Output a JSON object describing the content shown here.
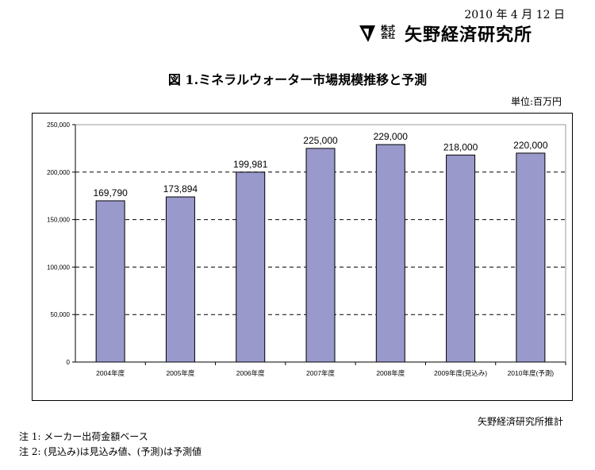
{
  "header": {
    "date": "2010 年 4 月 12 日",
    "company_small": "株式会社",
    "company_name": "矢野経済研究所"
  },
  "chart_data": {
    "type": "bar",
    "title": "図 1.ミネラルウォーター市場規模推移と予測",
    "unit": "単位:百万円",
    "categories": [
      "2004年度",
      "2005年度",
      "2006年度",
      "2007年度",
      "2008年度",
      "2009年度(見込み)",
      "2010年度(予測)"
    ],
    "values": [
      169790,
      173894,
      199981,
      225000,
      229000,
      218000,
      220000
    ],
    "value_labels": [
      "169,790",
      "173,894",
      "199,981",
      "225,000",
      "229,000",
      "218,000",
      "220,000"
    ],
    "ylim": [
      0,
      250000
    ],
    "yticks": [
      0,
      50000,
      100000,
      150000,
      200000,
      250000
    ],
    "ytick_labels": [
      "0",
      "50,000",
      "100,000",
      "150,000",
      "200,000",
      "250,000"
    ],
    "grid": "dashed horizontal",
    "bar_color": "#9999cc"
  },
  "footer": {
    "source": "矢野経済研究所推計",
    "notes": [
      "注 1:  メーカー出荷金額ベース",
      "注 2:  (見込み)は見込み値、(予測)は予測値"
    ]
  }
}
